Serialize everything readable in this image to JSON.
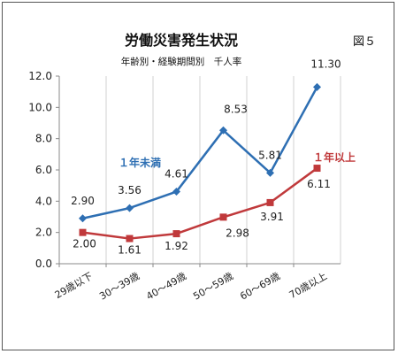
{
  "figure_label": "図５",
  "chart_data": {
    "type": "line",
    "title": "労働災害発生状況",
    "subtitle": "年齢別・経験期間別　千人率",
    "categories": [
      "29歳以下",
      "30～39歳",
      "40～49歳",
      "50～59歳",
      "60～69歳",
      "70歳以上"
    ],
    "ylim": [
      0,
      12
    ],
    "y_ticks": [
      "0.0",
      "2.0",
      "4.0",
      "6.0",
      "8.0",
      "10.0",
      "12.0"
    ],
    "grid": "vertical",
    "series": [
      {
        "name": "１年未満",
        "color": "#2e6fb3",
        "marker": "diamond",
        "values": [
          2.9,
          3.56,
          4.61,
          8.53,
          5.81,
          11.3
        ],
        "labels": [
          "2.90",
          "3.56",
          "4.61",
          "8.53",
          "5.81",
          "11.30"
        ]
      },
      {
        "name": "１年以上",
        "color": "#c0393b",
        "marker": "square",
        "values": [
          2.0,
          1.61,
          1.92,
          2.98,
          3.91,
          6.11
        ],
        "labels": [
          "2.00",
          "1.61",
          "1.92",
          "2.98",
          "3.91",
          "6.11"
        ]
      }
    ]
  }
}
